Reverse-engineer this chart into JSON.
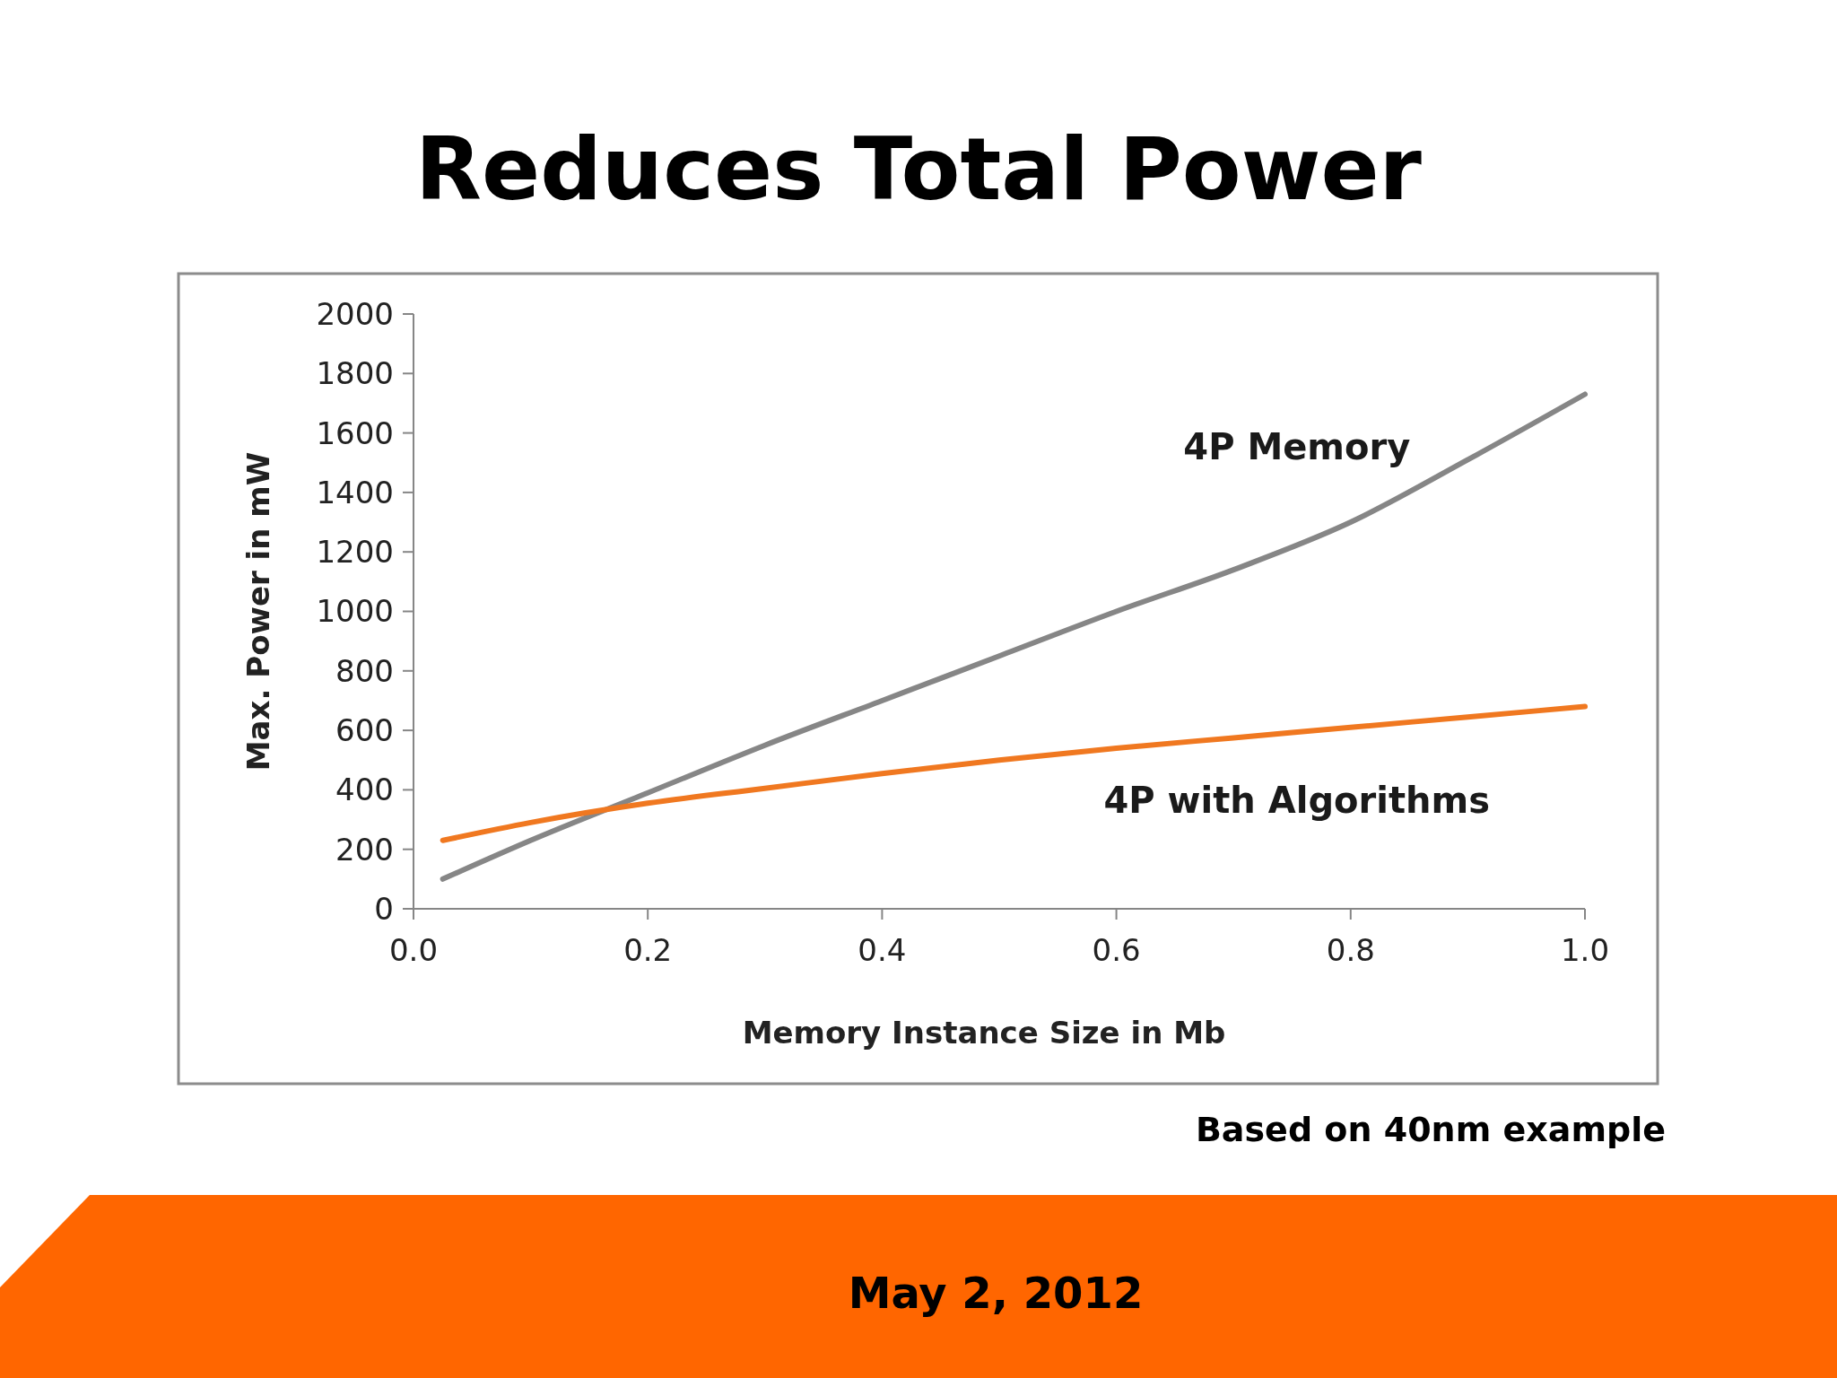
{
  "chart_data": {
    "type": "line",
    "title": "Reduces Total Power",
    "xlabel": "Memory Instance Size in Mb",
    "ylabel": "Max. Power in mW",
    "annotations": [
      "Based on 40nm example",
      "May 2, 2012"
    ],
    "x": [
      0.025,
      0.1,
      0.2,
      0.3,
      0.4,
      0.5,
      0.6,
      0.7,
      0.8,
      0.9,
      1.0
    ],
    "series": [
      {
        "name": "4P Memory",
        "color": "#868686",
        "values": [
          100,
          230,
          390,
          550,
          700,
          850,
          1000,
          1140,
          1300,
          1510,
          1730
        ]
      },
      {
        "name": "4P with Algorithms",
        "color": "#f07820",
        "values": [
          230,
          290,
          355,
          405,
          455,
          500,
          540,
          575,
          610,
          645,
          680
        ]
      }
    ],
    "xlim": [
      0,
      1
    ],
    "xticks": [
      {
        "value": 0,
        "label": "0.0"
      },
      0.2,
      0.4,
      0.6,
      0.8,
      {
        "value": 1,
        "label": "1.0"
      }
    ],
    "ylim": [
      0,
      2000
    ],
    "yticks": [
      0,
      200,
      400,
      600,
      800,
      1000,
      1200,
      1400,
      1600,
      1800,
      2000
    ],
    "grid": false,
    "marker": "none",
    "line_style": "solid"
  }
}
